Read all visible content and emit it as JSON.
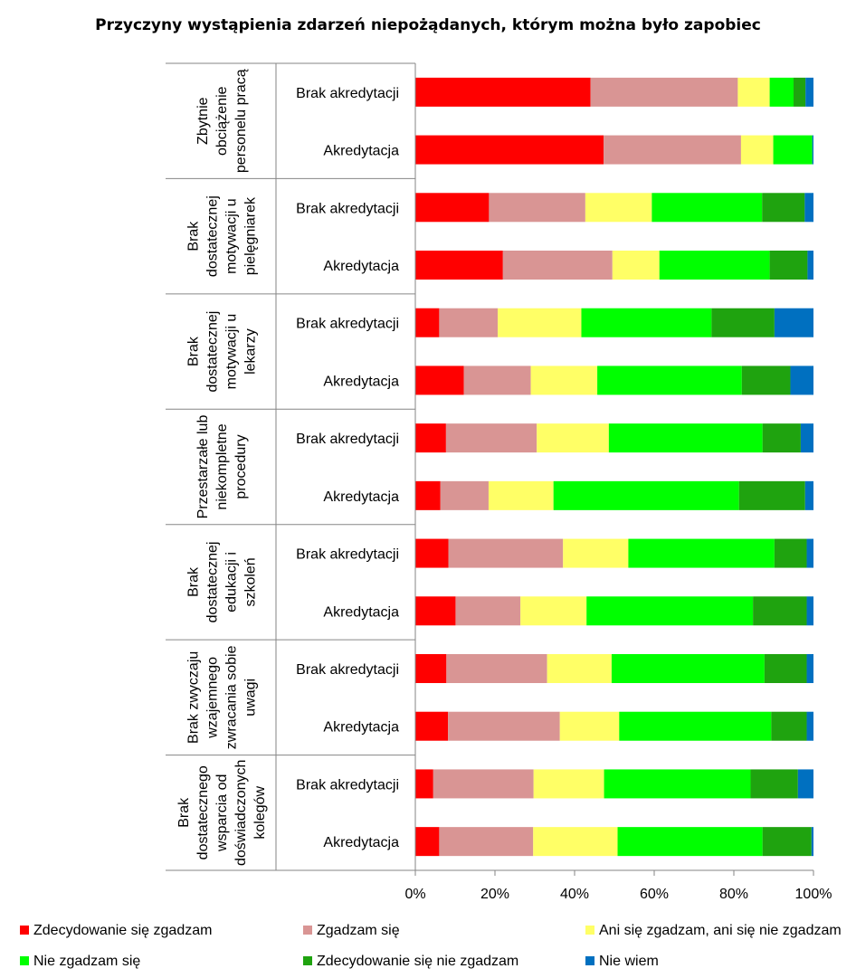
{
  "chart_data": {
    "type": "bar",
    "orientation": "horizontal",
    "stacked": true,
    "percent_stacked": true,
    "title": "Przyczyny  wystąpienia zdarzeń niepożądanych, którym można było zapobiec",
    "xlabel": "",
    "ylabel": "",
    "xlim": [
      0,
      100
    ],
    "xticks": [
      "0%",
      "20%",
      "40%",
      "60%",
      "80%",
      "100%"
    ],
    "grid": false,
    "legend_position": "bottom",
    "colors": [
      "#ff0000",
      "#d99594",
      "#ffff66",
      "#00ff00",
      "#1fa30f",
      "#0070c0"
    ],
    "series_names": [
      "Zdecydowanie się zgadzam",
      "Zgadzam się",
      "Ani się zgadzam, ani się nie zgadzam",
      "Nie zgadzam się",
      "Zdecydowanie się nie zgadzam",
      "Nie wiem"
    ],
    "groups": [
      {
        "label_lines": [
          "Zbytnie",
          "obciążenie",
          "personelu pracą"
        ],
        "bars": [
          {
            "label": "Brak akredytacji",
            "values": [
              44.0,
              37.0,
              8.0,
              6.0,
              3.0,
              2.0
            ]
          },
          {
            "label": "Akredytacja",
            "values": [
              47.3,
              34.5,
              8.1,
              9.8,
              0.0,
              0.3
            ]
          }
        ]
      },
      {
        "label_lines": [
          "Brak",
          "dostatecznej",
          "motywacji u",
          "pielęgniarek"
        ],
        "bars": [
          {
            "label": "Brak akredytacji",
            "values": [
              18.5,
              24.2,
              16.7,
              27.7,
              10.7,
              2.2
            ]
          },
          {
            "label": "Akredytacja",
            "values": [
              22.0,
              27.5,
              11.8,
              27.7,
              9.5,
              1.5
            ]
          }
        ]
      },
      {
        "label_lines": [
          "Brak",
          "dostatecznej",
          "motywacji u",
          "lekarzy"
        ],
        "bars": [
          {
            "label": "Brak akredytacji",
            "values": [
              6.0,
              14.7,
              21.0,
              32.7,
              15.8,
              9.8
            ]
          },
          {
            "label": "Akredytacja",
            "values": [
              12.2,
              16.8,
              16.7,
              36.3,
              12.2,
              5.8
            ]
          }
        ]
      },
      {
        "label_lines": [
          "Przestarzałe lub",
          "niekompletne",
          "procedury"
        ],
        "bars": [
          {
            "label": "Brak akredytacji",
            "values": [
              7.7,
              22.8,
              18.1,
              38.6,
              9.6,
              3.2
            ]
          },
          {
            "label": "Akredytacja",
            "values": [
              6.3,
              12.1,
              16.3,
              46.6,
              16.6,
              2.1
            ]
          }
        ]
      },
      {
        "label_lines": [
          "Brak",
          "dostatecznej",
          "edukacji i",
          "szkoleń"
        ],
        "bars": [
          {
            "label": "Brak akredytacji",
            "values": [
              8.3,
              28.8,
              16.4,
              36.7,
              8.1,
              1.7
            ]
          },
          {
            "label": "Akredytacja",
            "values": [
              10.1,
              16.3,
              16.6,
              41.8,
              13.5,
              1.7
            ]
          }
        ]
      },
      {
        "label_lines": [
          "Brak zwyczaju",
          "wzajemnego",
          "zwracania sobie",
          "uwagi"
        ],
        "bars": [
          {
            "label": "Brak akredytacji",
            "values": [
              7.8,
              25.3,
              16.2,
              38.4,
              10.6,
              1.7
            ]
          },
          {
            "label": "Akredytacja",
            "values": [
              8.2,
              28.1,
              14.9,
              38.2,
              8.9,
              1.7
            ]
          }
        ]
      },
      {
        "label_lines": [
          "Brak",
          "dostatecznego",
          "wsparcia od",
          "doświadczonych",
          "kolegów"
        ],
        "bars": [
          {
            "label": "Brak akredytacji",
            "values": [
              4.5,
              25.2,
              17.7,
              36.8,
              11.9,
              3.9
            ]
          },
          {
            "label": "Akredytacja",
            "values": [
              6.0,
              23.6,
              21.2,
              36.4,
              12.3,
              0.5
            ]
          }
        ]
      }
    ]
  }
}
